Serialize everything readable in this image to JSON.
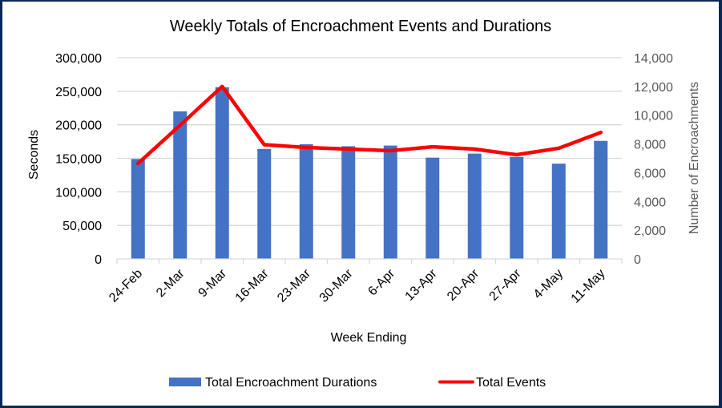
{
  "chart_data": {
    "type": "bar",
    "title": "Weekly Totals of Encroachment Events and Durations",
    "xlabel": "Week Ending",
    "ylabel": "Seconds",
    "y2label": "Number of Encroachments",
    "categories": [
      "24-Feb",
      "2-Mar",
      "9-Mar",
      "16-Mar",
      "23-Mar",
      "30-Mar",
      "6-Apr",
      "13-Apr",
      "20-Apr",
      "27-Apr",
      "4-May",
      "11-May"
    ],
    "ylim": [
      0,
      300000
    ],
    "y2lim": [
      0,
      14000
    ],
    "yticks": [
      "0",
      "50,000",
      "100,000",
      "150,000",
      "200,000",
      "250,000",
      "300,000"
    ],
    "yticks_values": [
      0,
      50000,
      100000,
      150000,
      200000,
      250000,
      300000
    ],
    "y2ticks": [
      "0",
      "2,000",
      "4,000",
      "6,000",
      "8,000",
      "10,000",
      "12,000",
      "14,000"
    ],
    "y2ticks_values": [
      0,
      2000,
      4000,
      6000,
      8000,
      10000,
      12000,
      14000
    ],
    "grid": true,
    "legend_position": "bottom",
    "series": [
      {
        "name": "Total Encroachment Durations",
        "type": "bar",
        "axis": "left",
        "color": "#4472c4",
        "values": [
          149000,
          220000,
          256000,
          164000,
          171000,
          168000,
          169000,
          151000,
          157000,
          152000,
          142000,
          176000
        ]
      },
      {
        "name": "Total Events",
        "type": "line",
        "axis": "right",
        "color": "#ff0000",
        "values": [
          6640,
          9300,
          12000,
          7950,
          7750,
          7640,
          7530,
          7800,
          7640,
          7250,
          7700,
          8800
        ]
      }
    ]
  }
}
